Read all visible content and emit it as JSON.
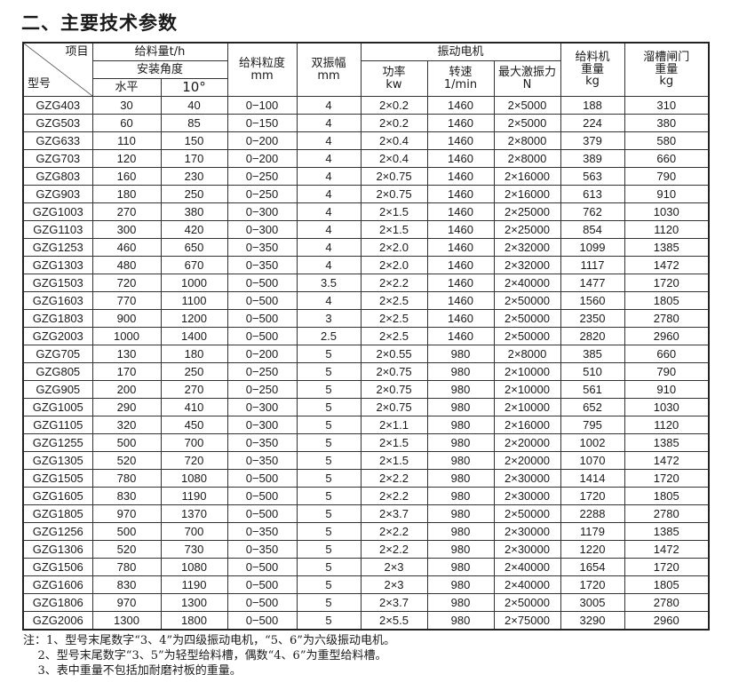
{
  "title": "二、主要技术参数",
  "header": {
    "item": "项目",
    "model": "型号",
    "feed_capacity": "给料量t/h",
    "install_angle": "安装角度",
    "horizontal": "水平",
    "ten_deg": "10°",
    "feed_size": "给料粒度",
    "feed_size_unit": "mm",
    "double_amplitude": "双振幅",
    "double_amplitude_unit": "mm",
    "vib_motor": "振动电机",
    "power": "功率",
    "power_unit": "kw",
    "speed": "转速",
    "speed_unit": "1/min",
    "max_force": "最大激振力",
    "max_force_unit": "N",
    "feeder_weight": "给料机",
    "feeder_weight2": "重量",
    "feeder_weight_unit": "kg",
    "gate_weight": "溜槽闸门",
    "gate_weight2": "重量",
    "gate_weight_unit": "kg"
  },
  "rows": [
    [
      "GZG403",
      "30",
      "40",
      "0−100",
      "4",
      "2×0.2",
      "1460",
      "2×5000",
      "188",
      "310"
    ],
    [
      "GZG503",
      "60",
      "85",
      "0−150",
      "4",
      "2×0.2",
      "1460",
      "2×5000",
      "224",
      "380"
    ],
    [
      "GZG633",
      "110",
      "150",
      "0−200",
      "4",
      "2×0.4",
      "1460",
      "2×8000",
      "379",
      "580"
    ],
    [
      "GZG703",
      "120",
      "170",
      "0−200",
      "4",
      "2×0.4",
      "1460",
      "2×8000",
      "389",
      "660"
    ],
    [
      "GZG803",
      "160",
      "230",
      "0−250",
      "4",
      "2×0.75",
      "1460",
      "2×16000",
      "563",
      "790"
    ],
    [
      "GZG903",
      "180",
      "250",
      "0−250",
      "4",
      "2×0.75",
      "1460",
      "2×16000",
      "613",
      "910"
    ],
    [
      "GZG1003",
      "270",
      "380",
      "0−300",
      "4",
      "2×1.5",
      "1460",
      "2×25000",
      "762",
      "1030"
    ],
    [
      "GZG1103",
      "300",
      "420",
      "0−300",
      "4",
      "2×1.5",
      "1460",
      "2×25000",
      "854",
      "1120"
    ],
    [
      "GZG1253",
      "460",
      "650",
      "0−350",
      "4",
      "2×2.0",
      "1460",
      "2×32000",
      "1099",
      "1385"
    ],
    [
      "GZG1303",
      "480",
      "670",
      "0−350",
      "4",
      "2×2.0",
      "1460",
      "2×32000",
      "1117",
      "1472"
    ],
    [
      "GZG1503",
      "720",
      "1000",
      "0−500",
      "3.5",
      "2×2.2",
      "1460",
      "2×40000",
      "1477",
      "1720"
    ],
    [
      "GZG1603",
      "770",
      "1100",
      "0−500",
      "4",
      "2×2.5",
      "1460",
      "2×50000",
      "1560",
      "1805"
    ],
    [
      "GZG1803",
      "900",
      "1200",
      "0−500",
      "3",
      "2×2.5",
      "1460",
      "2×50000",
      "2350",
      "2780"
    ],
    [
      "GZG2003",
      "1000",
      "1400",
      "0−500",
      "2.5",
      "2×2.5",
      "1460",
      "2×50000",
      "2820",
      "2960"
    ],
    [
      "GZG705",
      "130",
      "180",
      "0−200",
      "5",
      "2×0.55",
      "980",
      "2×8000",
      "385",
      "660"
    ],
    [
      "GZG805",
      "170",
      "250",
      "0−250",
      "5",
      "2×0.75",
      "980",
      "2×10000",
      "510",
      "790"
    ],
    [
      "GZG905",
      "200",
      "270",
      "0−250",
      "5",
      "2×0.75",
      "980",
      "2×10000",
      "561",
      "910"
    ],
    [
      "GZG1005",
      "290",
      "410",
      "0−300",
      "5",
      "2×0.75",
      "980",
      "2×10000",
      "652",
      "1030"
    ],
    [
      "GZG1105",
      "320",
      "450",
      "0−300",
      "5",
      "2×1.1",
      "980",
      "2×16000",
      "795",
      "1120"
    ],
    [
      "GZG1255",
      "500",
      "700",
      "0−350",
      "5",
      "2×1.5",
      "980",
      "2×20000",
      "1002",
      "1385"
    ],
    [
      "GZG1305",
      "520",
      "720",
      "0−350",
      "5",
      "2×1.5",
      "980",
      "2×20000",
      "1070",
      "1472"
    ],
    [
      "GZG1505",
      "780",
      "1080",
      "0−500",
      "5",
      "2×2.2",
      "980",
      "2×30000",
      "1414",
      "1720"
    ],
    [
      "GZG1605",
      "830",
      "1190",
      "0−500",
      "5",
      "2×2.2",
      "980",
      "2×30000",
      "1720",
      "1805"
    ],
    [
      "GZG1805",
      "970",
      "1370",
      "0−500",
      "5",
      "2×3.7",
      "980",
      "2×50000",
      "2288",
      "2780"
    ],
    [
      "GZG1256",
      "500",
      "700",
      "0−350",
      "5",
      "2×2.2",
      "980",
      "2×30000",
      "1179",
      "1385"
    ],
    [
      "GZG1306",
      "520",
      "730",
      "0−350",
      "5",
      "2×2.2",
      "980",
      "2×30000",
      "1220",
      "1472"
    ],
    [
      "GZG1506",
      "780",
      "1080",
      "0−500",
      "5",
      "2×3",
      "980",
      "2×40000",
      "1654",
      "1720"
    ],
    [
      "GZG1606",
      "830",
      "1190",
      "0−500",
      "5",
      "2×3",
      "980",
      "2×40000",
      "1720",
      "1805"
    ],
    [
      "GZG1806",
      "970",
      "1300",
      "0−500",
      "5",
      "2×3.7",
      "980",
      "2×50000",
      "3005",
      "2780"
    ],
    [
      "GZG2006",
      "1300",
      "1800",
      "0−500",
      "5",
      "2×5.5",
      "980",
      "2×75000",
      "3290",
      "2960"
    ]
  ],
  "notes": [
    "注：1、型号末尾数字“3、4”为四级振动电机，“5、6”为六级振动电机。",
    "    2、型号末尾数字“3、5”为轻型给料槽，偶数“4、6”为重型给料槽。",
    "    3、表中重量不包括加耐磨衬板的重量。"
  ]
}
